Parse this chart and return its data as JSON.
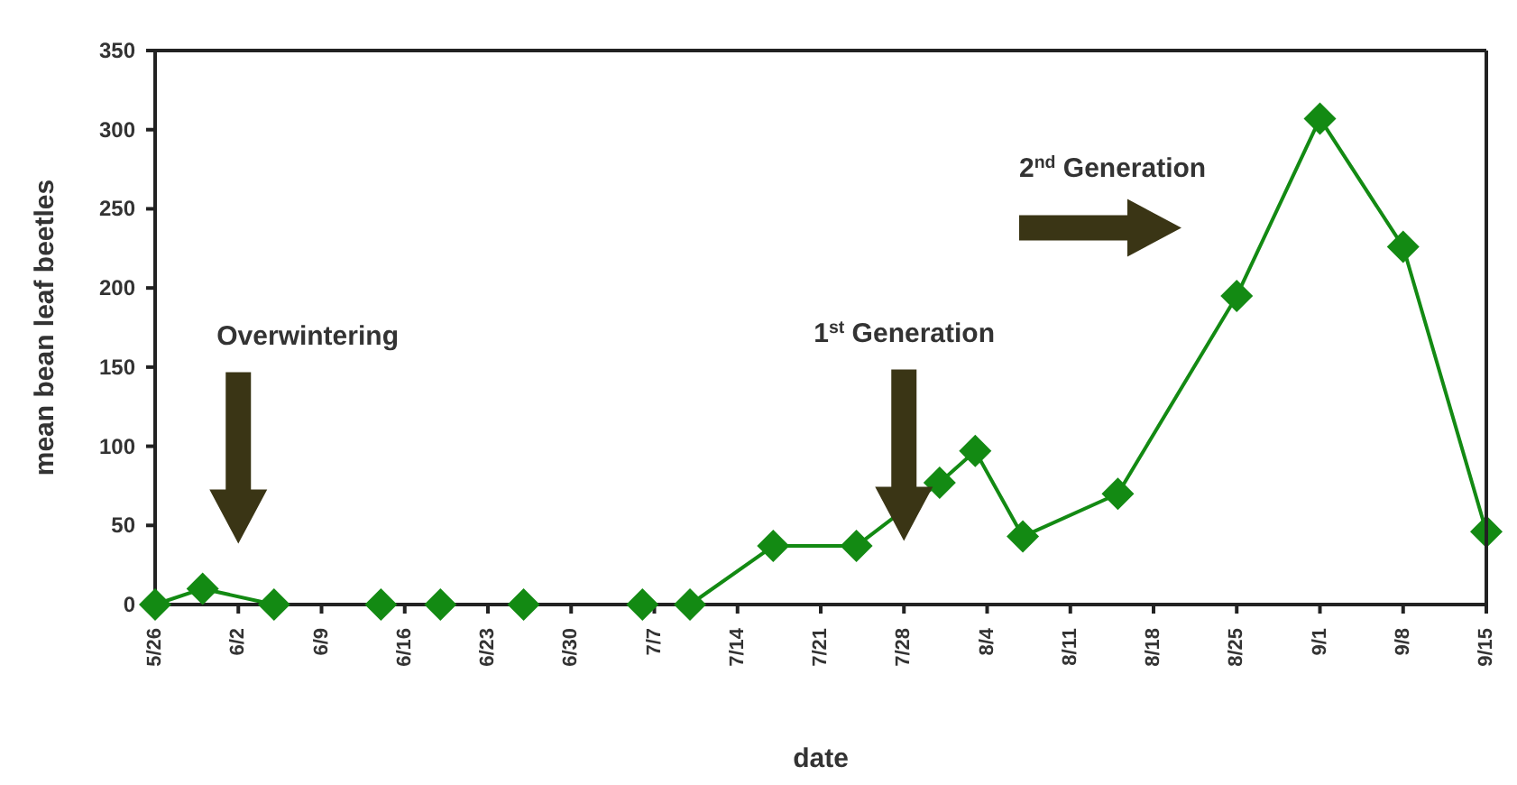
{
  "chart_data": {
    "type": "line",
    "xlabel": "date",
    "ylabel": "mean bean leaf beetles",
    "x": [
      "--05-26",
      "--05-30",
      "--06-05",
      "--06-14",
      "--06-19",
      "--06-26",
      "--07-06",
      "--07-10",
      "--07-17",
      "--07-24",
      "--07-31",
      "--08-03",
      "--08-07",
      "--08-15",
      "--08-25",
      "--09-01",
      "--09-08",
      "--09-15"
    ],
    "series": [
      {
        "color": "#138a13",
        "values": [
          0,
          10,
          0,
          0,
          0,
          0,
          0,
          0,
          37,
          37,
          77,
          97,
          43,
          70,
          195,
          307,
          226,
          46
        ]
      }
    ],
    "xlim": [
      "--05-26",
      "--09-15"
    ],
    "xticks": [
      {
        "value": "--05-26",
        "label": "5/26"
      },
      {
        "value": "--06-02",
        "label": "6/2"
      },
      {
        "value": "--06-09",
        "label": "6/9"
      },
      {
        "value": "--06-16",
        "label": "6/16"
      },
      {
        "value": "--06-23",
        "label": "6/23"
      },
      {
        "value": "--06-30",
        "label": "6/30"
      },
      {
        "value": "--07-07",
        "label": "7/7"
      },
      {
        "value": "--07-14",
        "label": "7/14"
      },
      {
        "value": "--07-21",
        "label": "7/21"
      },
      {
        "value": "--07-28",
        "label": "7/28"
      },
      {
        "value": "--08-04",
        "label": "8/4"
      },
      {
        "value": "--08-11",
        "label": "8/11"
      },
      {
        "value": "--08-18",
        "label": "8/18"
      },
      {
        "value": "--08-25",
        "label": "8/25"
      },
      {
        "value": "--09-01",
        "label": "9/1"
      },
      {
        "value": "--09-08",
        "label": "9/8"
      },
      {
        "value": "--09-15",
        "label": "9/15"
      }
    ],
    "ylim": [
      0,
      350
    ],
    "yticks": [
      0,
      50,
      100,
      150,
      200,
      250,
      300,
      350
    ],
    "annotations": [
      "Overwintering",
      "1$^{st}$ Generation",
      "2$^{nd}$ Generation"
    ],
    "marker": "diamond",
    "line_style": "solid"
  }
}
